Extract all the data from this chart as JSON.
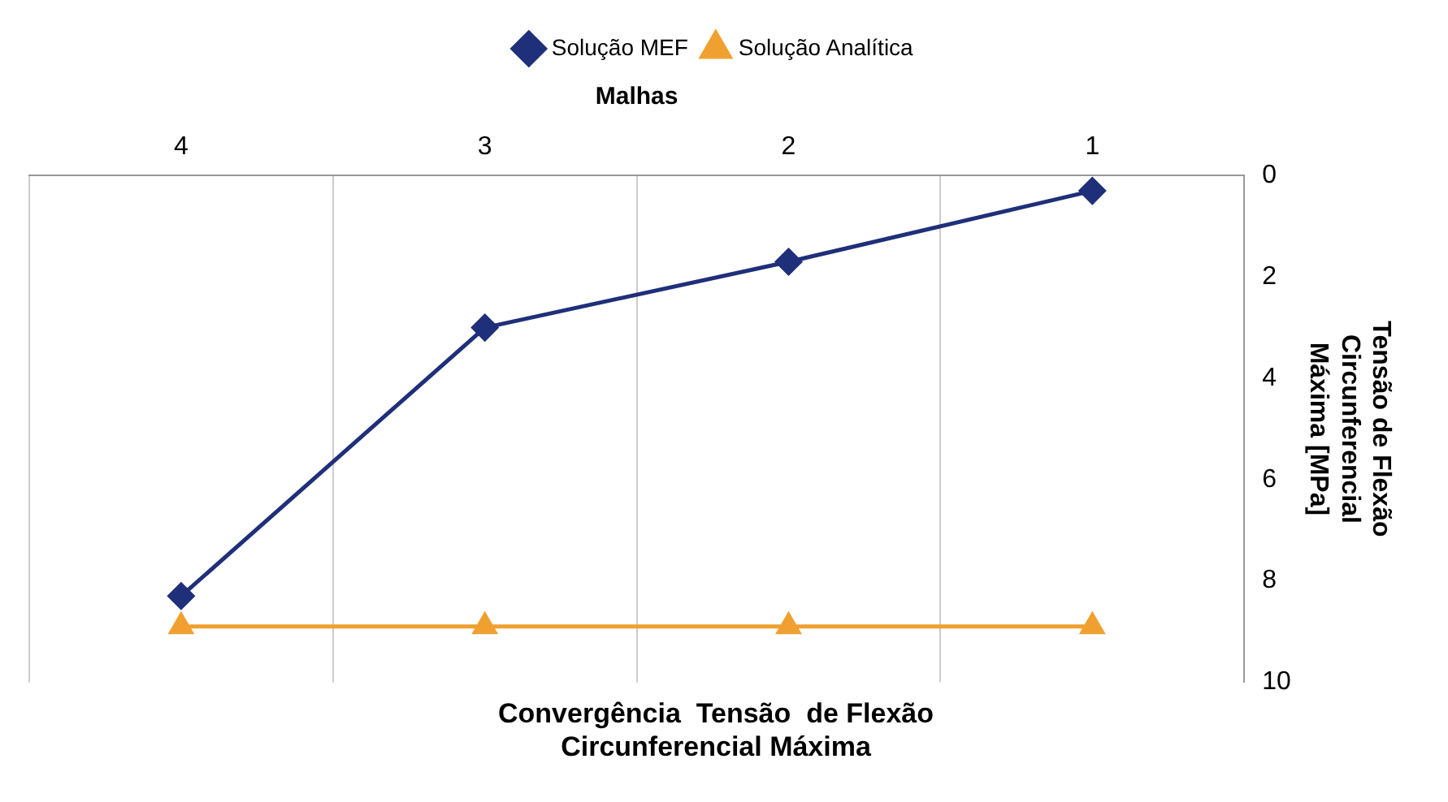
{
  "chart_data": {
    "type": "line",
    "title": [
      "Convergência  Tensão  de Flexão",
      "Circunferencial Máxima"
    ],
    "xlabel": "Malhas",
    "ylabel": [
      "Tensão de Flexão",
      "Circunferencial",
      "Máxima [MPa]"
    ],
    "categories": [
      "4",
      "3",
      "2",
      "1"
    ],
    "series": [
      {
        "name": "Solução MEF",
        "color": "#1f2f7a",
        "marker": "diamond",
        "values": [
          8.3,
          3.0,
          1.7,
          0.3
        ]
      },
      {
        "name": "Solução Analítica",
        "color": "#f0a030",
        "marker": "triangle",
        "values": [
          8.9,
          8.9,
          8.9,
          8.9
        ]
      }
    ],
    "ylim": [
      10,
      0
    ],
    "yticks": [
      0,
      2,
      4,
      6,
      8,
      10
    ],
    "grid": "x",
    "legend": "top",
    "line_style": "solid"
  }
}
